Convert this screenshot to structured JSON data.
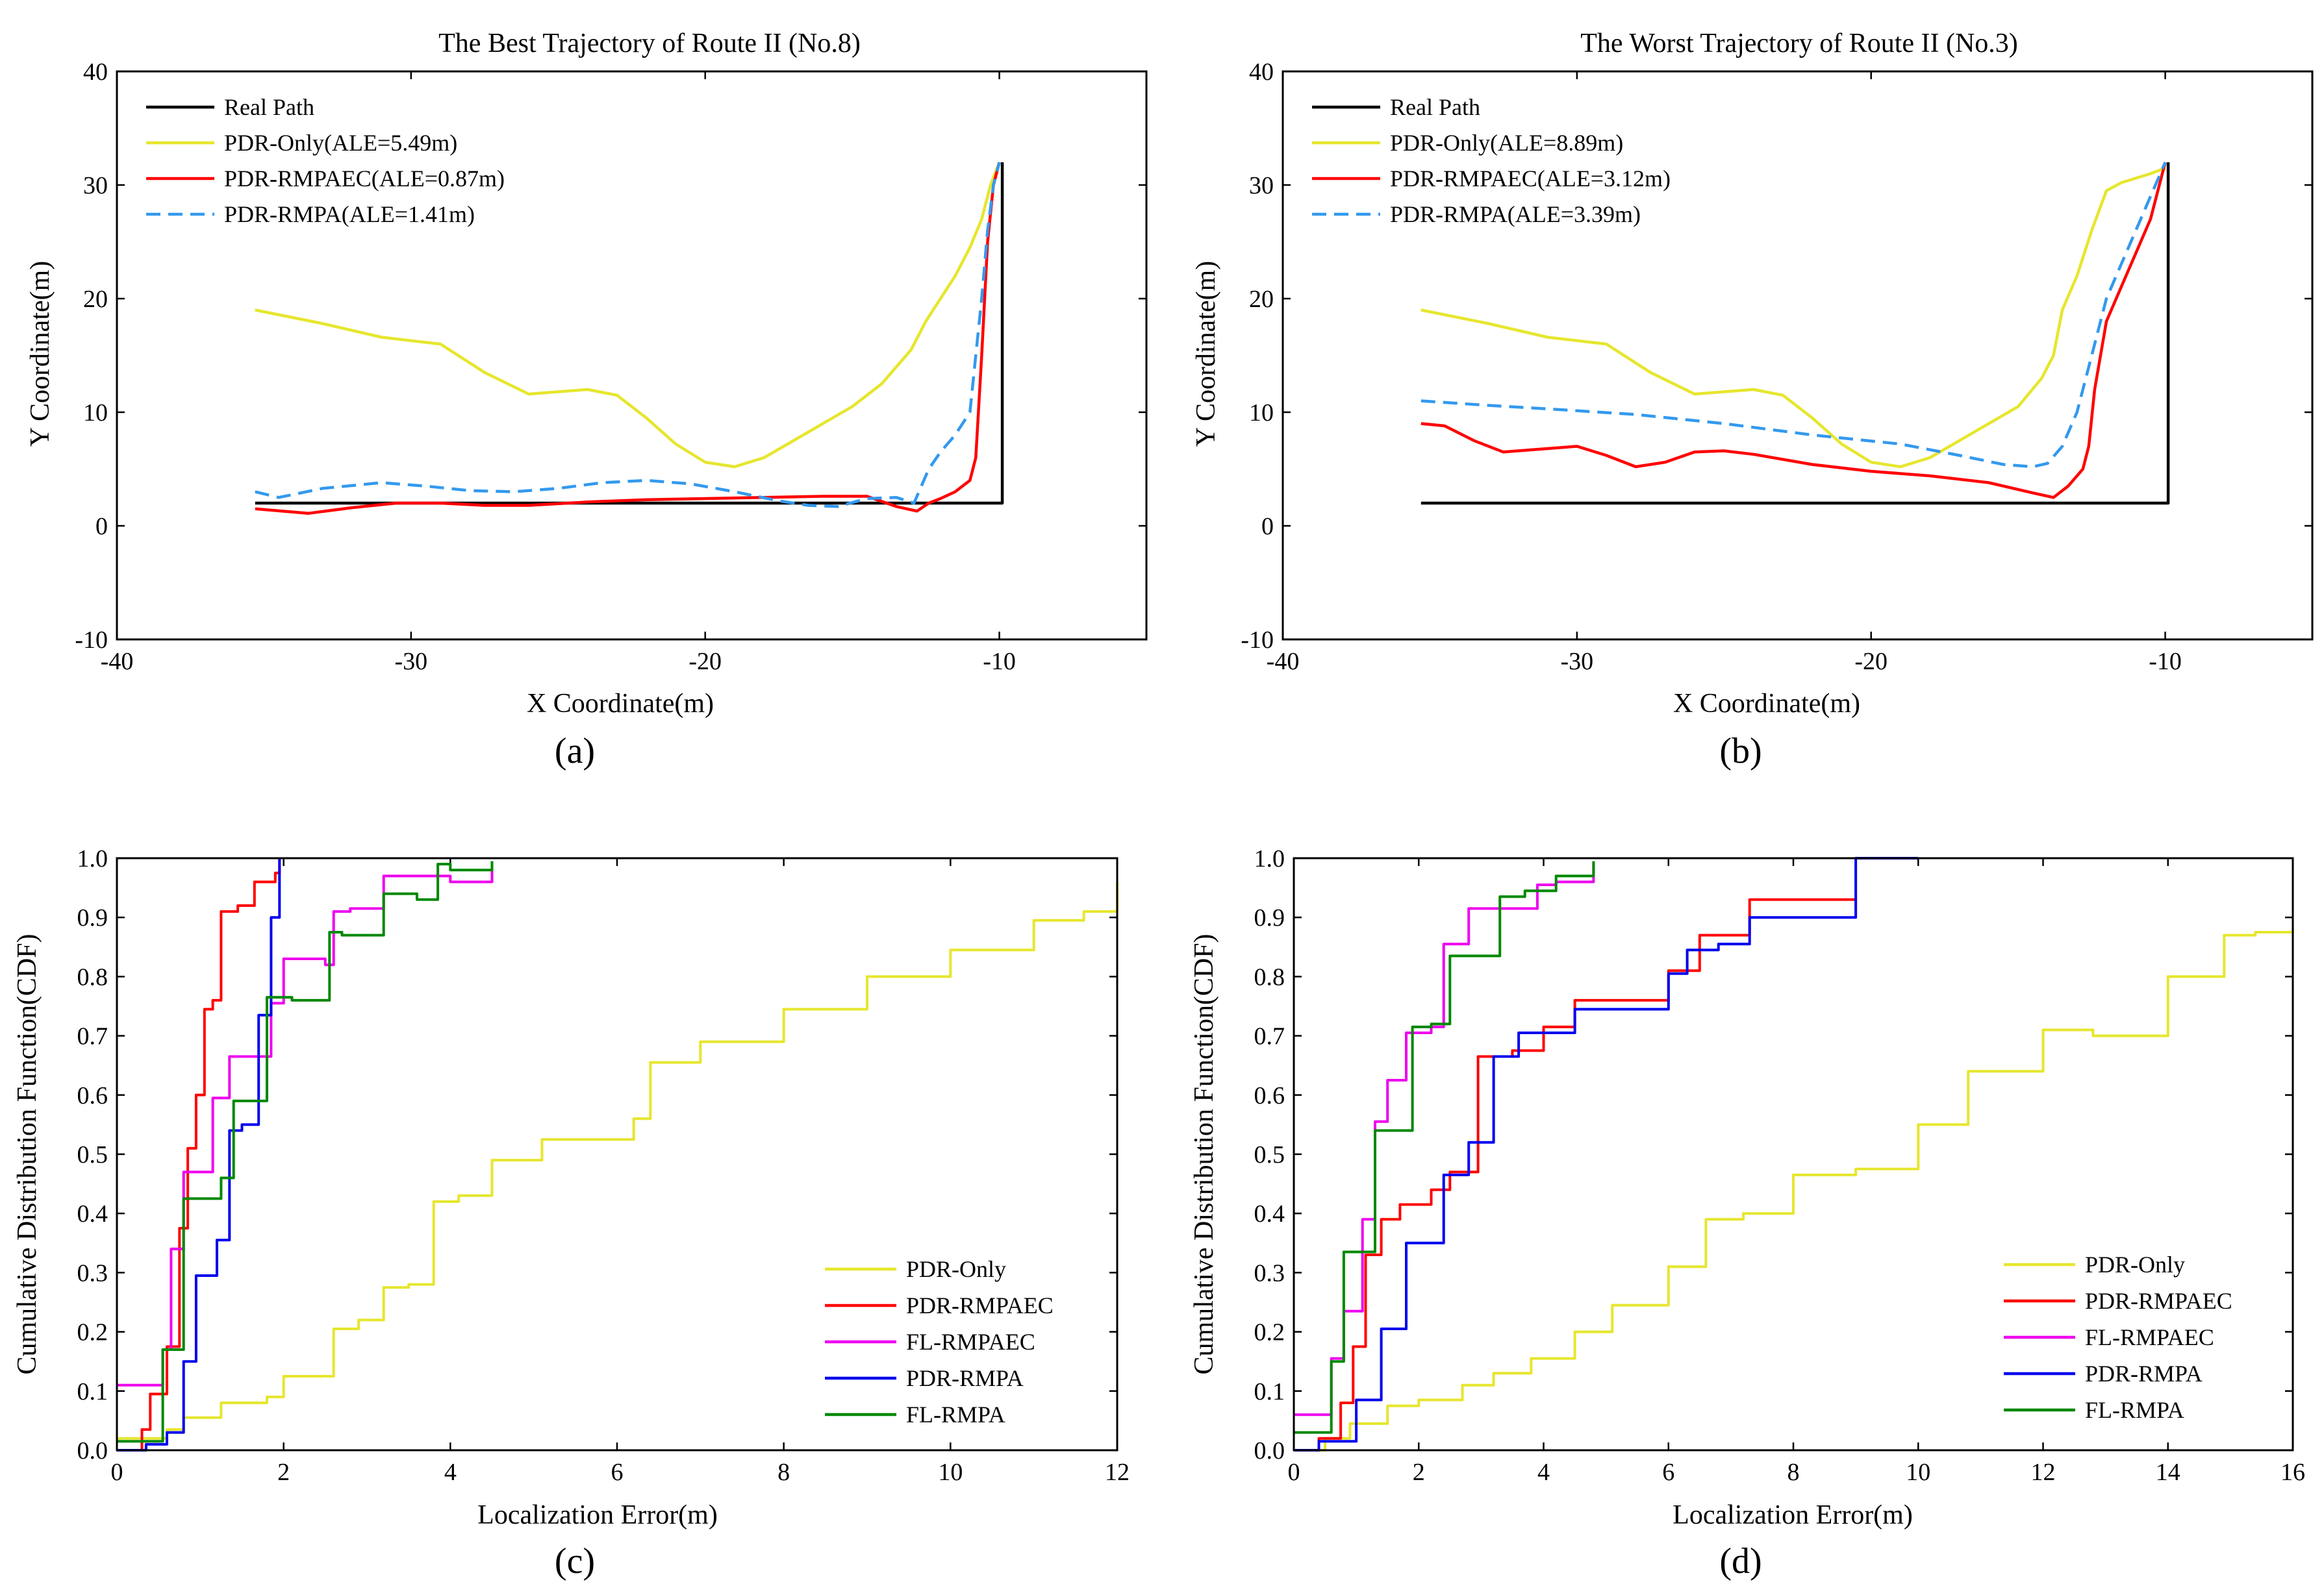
{
  "chart_data": [
    {
      "type": "line",
      "panel": "(a)",
      "title": "The Best Trajectory of Route II (No.8)",
      "xlabel": "X Coordinate(m)",
      "ylabel": "Y Coordinate(m)",
      "xlim": [
        -40,
        -5
      ],
      "ylim": [
        -10,
        40
      ],
      "xticks": [
        -40,
        -30,
        -20,
        -10
      ],
      "yticks": [
        -10,
        0,
        10,
        20,
        30,
        40
      ],
      "legend_loc": "top-left",
      "series": [
        {
          "name": "Real Path",
          "color": "#000000",
          "dash": "solid",
          "x": [
            -35.3,
            -9.9,
            -9.9
          ],
          "y": [
            2,
            2,
            32
          ]
        },
        {
          "name": "PDR-Only(ALE=5.49m)",
          "color": "#e6e62e",
          "dash": "solid",
          "x": [
            -35.3,
            -33,
            -31,
            -29,
            -27.5,
            -26,
            -25,
            -24,
            -23,
            -22,
            -21,
            -20,
            -19,
            -18,
            -17,
            -16,
            -15,
            -14,
            -13.5,
            -13,
            -12.5,
            -12,
            -11.5,
            -11,
            -10.6,
            -10.3,
            -10
          ],
          "y": [
            19,
            17.8,
            16.6,
            16,
            13.5,
            11.6,
            11.8,
            12,
            11.5,
            9.5,
            7.2,
            5.6,
            5.2,
            6,
            7.5,
            9,
            10.5,
            12.5,
            14,
            15.5,
            18,
            20,
            22,
            24.5,
            27,
            30,
            32
          ]
        },
        {
          "name": "PDR-RMPAEC(ALE=0.87m)",
          "color": "#ff0000",
          "dash": "solid",
          "x": [
            -35.3,
            -33.5,
            -32,
            -30.5,
            -29,
            -27.5,
            -26,
            -24,
            -22,
            -20,
            -18,
            -16,
            -14.5,
            -13.5,
            -12.8,
            -12.4,
            -12,
            -11.5,
            -11,
            -10.8,
            -10.6,
            -10.4,
            -10.2,
            -10
          ],
          "y": [
            1.5,
            1.1,
            1.6,
            2,
            2,
            1.8,
            1.8,
            2.1,
            2.3,
            2.4,
            2.5,
            2.6,
            2.6,
            1.7,
            1.3,
            2,
            2.4,
            3,
            4,
            6,
            15,
            25,
            30,
            32
          ]
        },
        {
          "name": "PDR-RMPA(ALE=1.41m)",
          "color": "#3399ee",
          "dash": "dashed",
          "x": [
            -35.3,
            -34.5,
            -33,
            -31,
            -29.5,
            -28,
            -26.5,
            -25,
            -23.5,
            -22,
            -20.5,
            -19,
            -17.5,
            -16.5,
            -15.5,
            -14.5,
            -13.5,
            -12.9,
            -12.4,
            -12,
            -11.5,
            -11,
            -10.8,
            -10.6,
            -10.4,
            -10.2,
            -10
          ],
          "y": [
            3,
            2.5,
            3.3,
            3.8,
            3.5,
            3.1,
            3,
            3.3,
            3.8,
            4,
            3.7,
            3,
            2.2,
            1.8,
            1.7,
            2.4,
            2.5,
            2,
            5,
            6.5,
            8,
            10,
            15,
            20,
            26,
            30,
            32
          ]
        }
      ]
    },
    {
      "type": "line",
      "panel": "(b)",
      "title": "The Worst Trajectory of Route II (No.3)",
      "xlabel": "X Coordinate(m)",
      "ylabel": "Y Coordinate(m)",
      "xlim": [
        -40,
        -5
      ],
      "ylim": [
        -10,
        40
      ],
      "xticks": [
        -40,
        -30,
        -20,
        -10
      ],
      "yticks": [
        -10,
        0,
        10,
        20,
        30,
        40
      ],
      "legend_loc": "top-left",
      "series": [
        {
          "name": "Real Path",
          "color": "#000000",
          "dash": "solid",
          "x": [
            -35.3,
            -9.9,
            -9.9
          ],
          "y": [
            2,
            2,
            32
          ]
        },
        {
          "name": "PDR-Only(ALE=8.89m)",
          "color": "#e6e62e",
          "dash": "solid",
          "x": [
            -35.3,
            -33,
            -31,
            -29,
            -27.5,
            -26,
            -25,
            -24,
            -23,
            -22,
            -21,
            -20,
            -19,
            -18,
            -17,
            -16,
            -15,
            -14.2,
            -13.8,
            -13.5,
            -13,
            -12.5,
            -12,
            -11.5,
            -11,
            -10.5,
            -10
          ],
          "y": [
            19,
            17.8,
            16.6,
            16,
            13.5,
            11.6,
            11.8,
            12,
            11.5,
            9.5,
            7.2,
            5.6,
            5.2,
            6,
            7.5,
            9,
            10.5,
            13,
            15,
            19,
            22,
            26,
            29.5,
            30.2,
            30.6,
            31,
            31.5
          ]
        },
        {
          "name": "PDR-RMPAEC(ALE=3.12m)",
          "color": "#ff0000",
          "dash": "solid",
          "x": [
            -35.3,
            -34.5,
            -33.5,
            -32.5,
            -31,
            -30,
            -29,
            -28,
            -27,
            -26,
            -25,
            -24,
            -22,
            -20,
            -18,
            -16,
            -14.5,
            -13.8,
            -13.3,
            -12.8,
            -12.6,
            -12.4,
            -12,
            -11.5,
            -11,
            -10.5,
            -10
          ],
          "y": [
            9,
            8.8,
            7.5,
            6.5,
            6.8,
            7,
            6.2,
            5.2,
            5.6,
            6.5,
            6.6,
            6.3,
            5.4,
            4.8,
            4.4,
            3.8,
            2.9,
            2.5,
            3.5,
            5,
            7,
            12,
            18,
            21,
            24,
            27,
            32
          ]
        },
        {
          "name": "PDR-RMPA(ALE=3.39m)",
          "color": "#3399ee",
          "dash": "dashed",
          "x": [
            -35.3,
            -33,
            -31,
            -28,
            -25,
            -22,
            -19,
            -17,
            -15.5,
            -14.5,
            -14,
            -13.5,
            -13,
            -12.5,
            -12,
            -11.5,
            -11,
            -10.5,
            -10
          ],
          "y": [
            11,
            10.6,
            10.3,
            9.8,
            9,
            8,
            7.2,
            6.2,
            5.4,
            5.2,
            5.5,
            7,
            10,
            15,
            20,
            23,
            26,
            29,
            32
          ]
        }
      ]
    },
    {
      "type": "line",
      "panel": "(c)",
      "title": "",
      "xlabel": "Localization Error(m)",
      "ylabel": "Cumulative Distribution Function(CDF)",
      "xlim": [
        0,
        12
      ],
      "ylim": [
        0,
        1
      ],
      "xticks": [
        0,
        2,
        4,
        6,
        8,
        10,
        12
      ],
      "yticks": [
        0.0,
        0.1,
        0.2,
        0.3,
        0.4,
        0.5,
        0.6,
        0.7,
        0.8,
        0.9,
        1.0
      ],
      "legend_loc": "bottom-right",
      "series": [
        {
          "name": "PDR-Only",
          "color": "#e6e62e",
          "x": [
            0,
            0.6,
            0.8,
            1.25,
            1.8,
            2.0,
            2.6,
            2.9,
            3.2,
            3.5,
            3.8,
            4.1,
            4.5,
            5.1,
            5.8,
            6.2,
            6.4,
            7.0,
            8.0,
            9.0,
            9.5,
            10.0,
            11.0,
            11.6,
            12.0
          ],
          "y": [
            0.02,
            0.035,
            0.055,
            0.08,
            0.09,
            0.125,
            0.205,
            0.22,
            0.275,
            0.28,
            0.42,
            0.43,
            0.49,
            0.525,
            0.525,
            0.56,
            0.655,
            0.69,
            0.745,
            0.8,
            0.8,
            0.845,
            0.895,
            0.91,
            0.96
          ]
        },
        {
          "name": "PDR-RMPAEC",
          "color": "#ff0000",
          "x": [
            0,
            0.3,
            0.4,
            0.6,
            0.75,
            0.85,
            0.95,
            1.05,
            1.15,
            1.25,
            1.45,
            1.65,
            1.9,
            1.95
          ],
          "y": [
            0.0,
            0.035,
            0.095,
            0.175,
            0.375,
            0.51,
            0.6,
            0.745,
            0.76,
            0.91,
            0.92,
            0.96,
            0.975,
            1.0
          ]
        },
        {
          "name": "FL-RMPAEC",
          "color": "#ee00ee",
          "x": [
            0,
            0.55,
            0.65,
            0.8,
            1.15,
            1.35,
            1.85,
            2.0,
            2.5,
            2.6,
            2.8,
            3.2,
            4.0,
            4.5
          ],
          "y": [
            0.11,
            0.17,
            0.34,
            0.47,
            0.595,
            0.665,
            0.755,
            0.83,
            0.82,
            0.91,
            0.915,
            0.97,
            0.96,
            0.985
          ]
        },
        {
          "name": "PDR-RMPA",
          "color": "#0000ee",
          "x": [
            0,
            0.35,
            0.6,
            0.8,
            0.95,
            1.2,
            1.35,
            1.5,
            1.7,
            1.85,
            1.95
          ],
          "y": [
            0.0,
            0.01,
            0.03,
            0.15,
            0.295,
            0.355,
            0.54,
            0.55,
            0.735,
            0.9,
            1.0
          ]
        },
        {
          "name": "FL-RMPA",
          "color": "#008800",
          "x": [
            0,
            0.55,
            0.8,
            1.25,
            1.4,
            1.8,
            2.1,
            2.55,
            2.7,
            3.2,
            3.6,
            3.85,
            4.0,
            4.5
          ],
          "y": [
            0.015,
            0.17,
            0.425,
            0.46,
            0.59,
            0.765,
            0.76,
            0.875,
            0.87,
            0.94,
            0.93,
            0.99,
            0.98,
            0.995
          ]
        }
      ]
    },
    {
      "type": "line",
      "panel": "(d)",
      "title": "",
      "xlabel": "Localization Error(m)",
      "ylabel": "Cumulative Distribution Function(CDF)",
      "xlim": [
        0,
        16
      ],
      "ylim": [
        0,
        1
      ],
      "xticks": [
        0,
        2,
        4,
        6,
        8,
        10,
        12,
        14,
        16
      ],
      "yticks": [
        0.0,
        0.1,
        0.2,
        0.3,
        0.4,
        0.5,
        0.6,
        0.7,
        0.8,
        0.9,
        1.0
      ],
      "legend_loc": "bottom-right",
      "series": [
        {
          "name": "PDR-Only",
          "color": "#e6e62e",
          "x": [
            0,
            0.5,
            0.9,
            1.5,
            2.0,
            2.7,
            3.2,
            3.8,
            4.5,
            5.1,
            6.0,
            6.6,
            7.2,
            8.0,
            9.0,
            10.0,
            10.8,
            12.0,
            12.8,
            14.0,
            14.9,
            15.4,
            16.0
          ],
          "y": [
            0.0,
            0.02,
            0.045,
            0.075,
            0.085,
            0.11,
            0.13,
            0.155,
            0.2,
            0.245,
            0.31,
            0.39,
            0.4,
            0.465,
            0.475,
            0.55,
            0.64,
            0.71,
            0.7,
            0.8,
            0.87,
            0.875,
            0.88
          ]
        },
        {
          "name": "PDR-RMPAEC",
          "color": "#ff0000",
          "x": [
            0,
            0.4,
            0.75,
            0.95,
            1.15,
            1.4,
            1.7,
            2.2,
            2.5,
            2.95,
            3.5,
            4.0,
            4.5,
            6.0,
            6.5,
            7.3,
            9.0
          ],
          "y": [
            0.0,
            0.02,
            0.08,
            0.175,
            0.33,
            0.39,
            0.415,
            0.44,
            0.47,
            0.665,
            0.675,
            0.715,
            0.76,
            0.81,
            0.87,
            0.93,
            0.93
          ]
        },
        {
          "name": "FL-RMPAEC",
          "color": "#ee00ee",
          "x": [
            0,
            0.6,
            0.8,
            1.1,
            1.3,
            1.5,
            1.8,
            2.2,
            2.4,
            2.8,
            3.3,
            3.9,
            4.2,
            4.8
          ],
          "y": [
            0.06,
            0.155,
            0.235,
            0.39,
            0.555,
            0.625,
            0.705,
            0.715,
            0.855,
            0.915,
            0.915,
            0.955,
            0.96,
            0.99
          ]
        },
        {
          "name": "PDR-RMPA",
          "color": "#0000ee",
          "x": [
            0,
            0.4,
            1.0,
            1.4,
            1.8,
            2.4,
            2.8,
            3.2,
            3.6,
            4.5,
            6.0,
            6.3,
            6.8,
            7.3,
            9.0,
            10.0
          ],
          "y": [
            0.0,
            0.015,
            0.085,
            0.205,
            0.35,
            0.465,
            0.52,
            0.665,
            0.705,
            0.745,
            0.805,
            0.845,
            0.855,
            0.9,
            1.0,
            1.0
          ]
        },
        {
          "name": "FL-RMPA",
          "color": "#008800",
          "x": [
            0,
            0.6,
            0.8,
            1.3,
            1.9,
            2.2,
            2.5,
            3.3,
            3.7,
            4.2,
            4.8
          ],
          "y": [
            0.03,
            0.15,
            0.335,
            0.54,
            0.715,
            0.72,
            0.835,
            0.935,
            0.945,
            0.97,
            0.995
          ]
        }
      ]
    }
  ]
}
